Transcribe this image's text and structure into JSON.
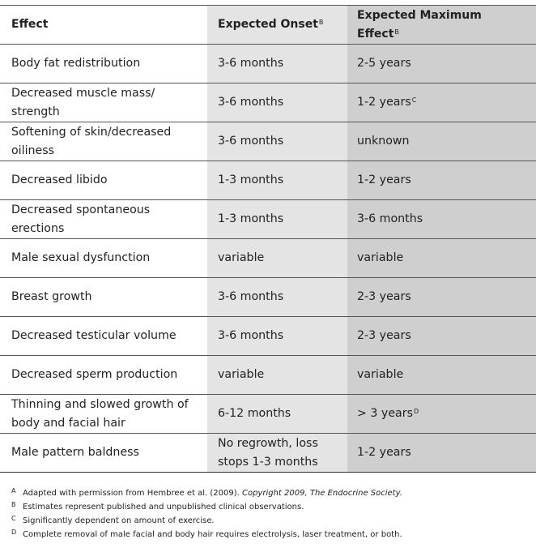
{
  "table": {
    "headers": {
      "effect": "Effect",
      "onset": "Expected Onset",
      "onset_mark": "B",
      "max": "Expected Maximum Effect",
      "max_mark": "B"
    },
    "rows": [
      {
        "effect": "Body fat redistribution",
        "onset": "3-6 months",
        "max": "2-5 years",
        "max_mark": ""
      },
      {
        "effect": "Decreased muscle mass/ strength",
        "onset": "3-6 months",
        "max": "1-2 years",
        "max_mark": "C"
      },
      {
        "effect": "Softening of skin/decreased oiliness",
        "onset": "3-6 months",
        "max": "unknown",
        "max_mark": ""
      },
      {
        "effect": "Decreased libido",
        "onset": "1-3 months",
        "max": "1-2 years",
        "max_mark": ""
      },
      {
        "effect": "Decreased spontaneous erections",
        "onset": "1-3 months",
        "max": "3-6 months",
        "max_mark": ""
      },
      {
        "effect": "Male sexual dysfunction",
        "onset": "variable",
        "max": "variable",
        "max_mark": ""
      },
      {
        "effect": "Breast growth",
        "onset": "3-6 months",
        "max": "2-3 years",
        "max_mark": ""
      },
      {
        "effect": "Decreased testicular volume",
        "onset": "3-6 months",
        "max": "2-3 years",
        "max_mark": ""
      },
      {
        "effect": "Decreased sperm production",
        "onset": "variable",
        "max": "variable",
        "max_mark": ""
      },
      {
        "effect": "Thinning and slowed growth of body and facial hair",
        "onset": "6-12 months",
        "max": "> 3 years",
        "max_mark": "D"
      },
      {
        "effect": "Male pattern baldness",
        "onset": "No regrowth, loss stops 1-3 months",
        "max": "1-2 years",
        "max_mark": ""
      }
    ]
  },
  "footnotes": [
    {
      "mark": "A",
      "text": "Adapted with permission from Hembree et al. (2009). ",
      "italic": "Copyright 2009, The Endocrine Society."
    },
    {
      "mark": "B",
      "text": "Estimates represent published and unpublished clinical observations.",
      "italic": ""
    },
    {
      "mark": "C",
      "text": "Significantly dependent on amount of exercise.",
      "italic": ""
    },
    {
      "mark": "D",
      "text": "Complete removal of male facial and body hair requires electrolysis, laser treatment, or both.",
      "italic": ""
    }
  ]
}
